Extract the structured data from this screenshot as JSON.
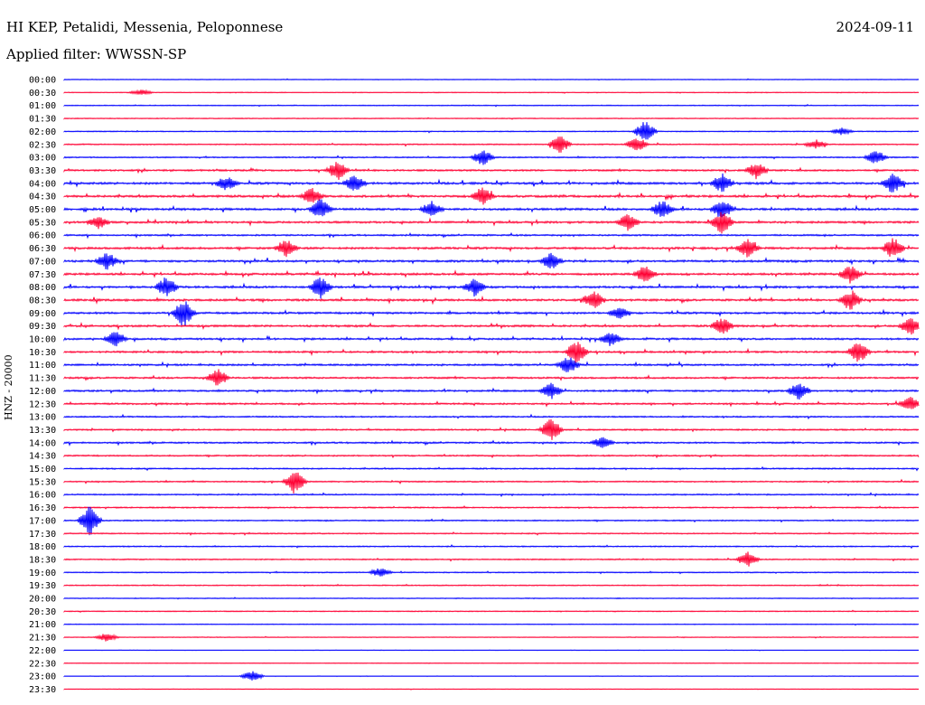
{
  "header": {
    "station": "HI KEP, Petalidi, Messenia, Peloponnese",
    "date": "2024-09-11",
    "filter": "Applied filter: WWSSN-SP"
  },
  "chart_data": {
    "type": "line",
    "ylabel": "HNZ - 20000",
    "row_labels": [
      "00:00",
      "00:30",
      "01:00",
      "01:30",
      "02:00",
      "02:30",
      "03:00",
      "03:30",
      "04:00",
      "04:30",
      "05:00",
      "05:30",
      "06:00",
      "06:30",
      "07:00",
      "07:30",
      "08:00",
      "08:30",
      "09:00",
      "09:30",
      "10:00",
      "10:30",
      "11:00",
      "11:30",
      "12:00",
      "12:30",
      "13:00",
      "13:30",
      "14:00",
      "14:30",
      "15:00",
      "15:30",
      "16:00",
      "16:30",
      "17:00",
      "17:30",
      "18:00",
      "18:30",
      "19:00",
      "19:30",
      "20:00",
      "20:30",
      "21:00",
      "21:30",
      "22:00",
      "22:30",
      "23:00",
      "23:30"
    ],
    "colors": [
      "#0000ff",
      "#ff0033"
    ],
    "activity": [
      0.15,
      0.15,
      0.2,
      0.2,
      0.25,
      0.35,
      0.35,
      0.6,
      0.8,
      0.8,
      0.8,
      0.7,
      0.55,
      0.75,
      0.75,
      0.75,
      0.75,
      0.75,
      0.7,
      0.7,
      0.65,
      0.65,
      0.6,
      0.6,
      0.6,
      0.55,
      0.45,
      0.45,
      0.55,
      0.45,
      0.4,
      0.4,
      0.4,
      0.35,
      0.35,
      0.35,
      0.3,
      0.3,
      0.3,
      0.25,
      0.2,
      0.2,
      0.15,
      0.15,
      0.1,
      0.1,
      0.1,
      0.1
    ],
    "events": [
      {
        "row": 1,
        "x": 0.09,
        "amp": 0.3
      },
      {
        "row": 4,
        "x": 0.68,
        "amp": 1.2
      },
      {
        "row": 4,
        "x": 0.91,
        "amp": 0.4
      },
      {
        "row": 5,
        "x": 0.58,
        "amp": 1.0
      },
      {
        "row": 5,
        "x": 0.67,
        "amp": 0.8
      },
      {
        "row": 5,
        "x": 0.88,
        "amp": 0.5
      },
      {
        "row": 6,
        "x": 0.49,
        "amp": 0.9
      },
      {
        "row": 6,
        "x": 0.95,
        "amp": 0.8
      },
      {
        "row": 7,
        "x": 0.32,
        "amp": 1.1
      },
      {
        "row": 7,
        "x": 0.81,
        "amp": 0.9
      },
      {
        "row": 8,
        "x": 0.19,
        "amp": 0.8
      },
      {
        "row": 8,
        "x": 0.34,
        "amp": 1.0
      },
      {
        "row": 8,
        "x": 0.77,
        "amp": 1.1
      },
      {
        "row": 8,
        "x": 0.97,
        "amp": 1.2
      },
      {
        "row": 9,
        "x": 0.29,
        "amp": 0.9
      },
      {
        "row": 9,
        "x": 0.49,
        "amp": 1.0
      },
      {
        "row": 10,
        "x": 0.3,
        "amp": 1.2
      },
      {
        "row": 10,
        "x": 0.43,
        "amp": 0.9
      },
      {
        "row": 10,
        "x": 0.7,
        "amp": 1.0
      },
      {
        "row": 10,
        "x": 0.77,
        "amp": 1.2
      },
      {
        "row": 11,
        "x": 0.04,
        "amp": 0.7
      },
      {
        "row": 11,
        "x": 0.66,
        "amp": 1.0
      },
      {
        "row": 11,
        "x": 0.77,
        "amp": 1.3
      },
      {
        "row": 13,
        "x": 0.26,
        "amp": 1.0
      },
      {
        "row": 13,
        "x": 0.8,
        "amp": 1.0
      },
      {
        "row": 13,
        "x": 0.97,
        "amp": 1.2
      },
      {
        "row": 14,
        "x": 0.05,
        "amp": 1.0
      },
      {
        "row": 14,
        "x": 0.57,
        "amp": 0.9
      },
      {
        "row": 15,
        "x": 0.68,
        "amp": 1.0
      },
      {
        "row": 15,
        "x": 0.92,
        "amp": 1.0
      },
      {
        "row": 16,
        "x": 0.12,
        "amp": 1.2
      },
      {
        "row": 16,
        "x": 0.3,
        "amp": 1.3
      },
      {
        "row": 16,
        "x": 0.48,
        "amp": 1.0
      },
      {
        "row": 17,
        "x": 0.62,
        "amp": 1.0
      },
      {
        "row": 17,
        "x": 0.92,
        "amp": 1.2
      },
      {
        "row": 18,
        "x": 0.14,
        "amp": 1.6
      },
      {
        "row": 18,
        "x": 0.65,
        "amp": 0.7
      },
      {
        "row": 19,
        "x": 0.77,
        "amp": 1.0
      },
      {
        "row": 19,
        "x": 0.99,
        "amp": 1.0
      },
      {
        "row": 20,
        "x": 0.06,
        "amp": 0.9
      },
      {
        "row": 20,
        "x": 0.64,
        "amp": 0.8
      },
      {
        "row": 21,
        "x": 0.6,
        "amp": 1.4
      },
      {
        "row": 21,
        "x": 0.93,
        "amp": 1.2
      },
      {
        "row": 22,
        "x": 0.59,
        "amp": 1.0
      },
      {
        "row": 23,
        "x": 0.18,
        "amp": 1.0
      },
      {
        "row": 24,
        "x": 0.57,
        "amp": 0.9
      },
      {
        "row": 24,
        "x": 0.86,
        "amp": 1.0
      },
      {
        "row": 25,
        "x": 0.99,
        "amp": 0.8
      },
      {
        "row": 27,
        "x": 0.57,
        "amp": 1.3
      },
      {
        "row": 28,
        "x": 0.63,
        "amp": 0.6
      },
      {
        "row": 31,
        "x": 0.27,
        "amp": 1.4
      },
      {
        "row": 34,
        "x": 0.03,
        "amp": 1.8
      },
      {
        "row": 37,
        "x": 0.8,
        "amp": 0.9
      },
      {
        "row": 38,
        "x": 0.37,
        "amp": 0.5
      },
      {
        "row": 43,
        "x": 0.05,
        "amp": 0.5
      },
      {
        "row": 46,
        "x": 0.22,
        "amp": 0.6
      }
    ]
  }
}
